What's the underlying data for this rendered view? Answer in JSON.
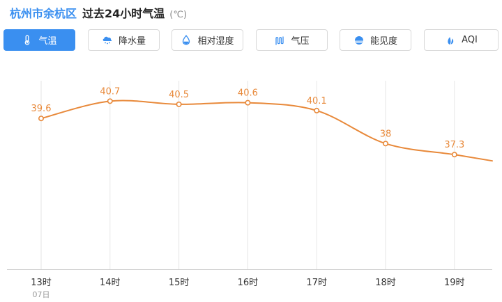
{
  "header": {
    "location": "杭州市余杭区",
    "title": "过去24小时气温",
    "unit": "(℃)"
  },
  "tabs": [
    {
      "label": "气温",
      "icon": "thermometer-icon",
      "active": true
    },
    {
      "label": "降水量",
      "icon": "rain-cloud-icon",
      "active": false
    },
    {
      "label": "相对湿度",
      "icon": "water-drop-icon",
      "active": false
    },
    {
      "label": "气压",
      "icon": "pressure-icon",
      "active": false
    },
    {
      "label": "能见度",
      "icon": "visibility-icon",
      "active": false
    },
    {
      "label": "AQI",
      "icon": "aqi-leaf-icon",
      "active": false
    }
  ],
  "colors": {
    "accent": "#3a8ff0",
    "line": "#e8893a"
  },
  "chart_data": {
    "type": "line",
    "categories": [
      "13时",
      "14时",
      "15时",
      "16时",
      "17时",
      "18时",
      "19时"
    ],
    "date_label": "07日",
    "values": [
      39.6,
      40.7,
      40.5,
      40.6,
      40.1,
      38,
      37.3
    ],
    "trailing_value": 36.9,
    "value_labels": [
      "39.6",
      "40.7",
      "40.5",
      "40.6",
      "40.1",
      "38",
      "37.3"
    ],
    "ylim": [
      30,
      42
    ],
    "grid": "vertical"
  }
}
